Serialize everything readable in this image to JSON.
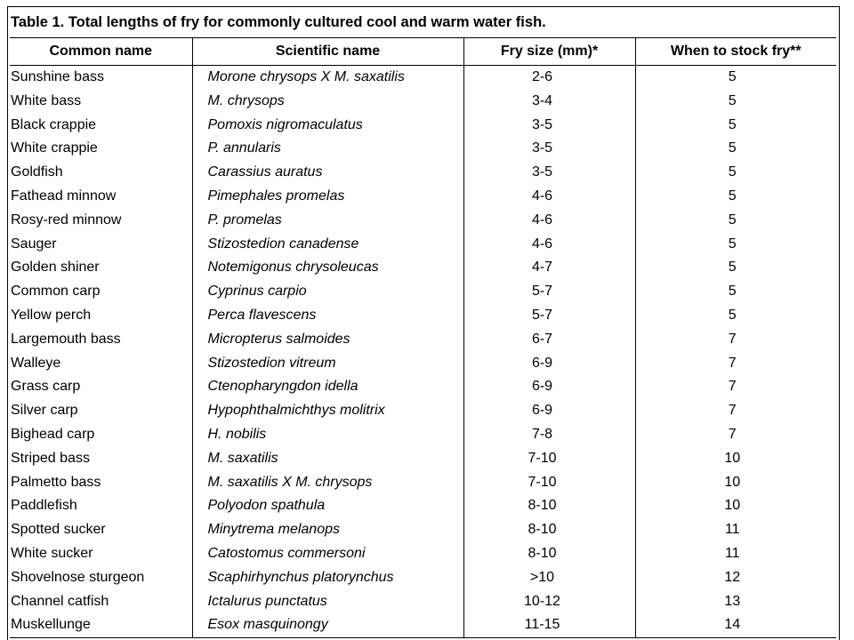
{
  "caption": "Table 1. Total lengths of fry for commonly cultured cool and warm water fish.",
  "columns": [
    "Common name",
    "Scientific name",
    "Fry size (mm)*",
    "When to  stock fry**"
  ],
  "rows": [
    [
      "Sunshine bass",
      "Morone chrysops X M. saxatilis",
      "2-6",
      "5"
    ],
    [
      "White bass",
      "M. chrysops",
      "3-4",
      "5"
    ],
    [
      "Black crappie",
      "Pomoxis nigromaculatus",
      "3-5",
      "5"
    ],
    [
      "White crappie",
      "P. annularis",
      "3-5",
      "5"
    ],
    [
      "Goldfish",
      "Carassius auratus",
      "3-5",
      "5"
    ],
    [
      "Fathead minnow",
      "Pimephales promelas",
      "4-6",
      "5"
    ],
    [
      "Rosy-red minnow",
      "P. promelas",
      "4-6",
      "5"
    ],
    [
      "Sauger",
      "Stizostedion canadense",
      "4-6",
      "5"
    ],
    [
      "Golden shiner",
      "Notemigonus chrysoleucas",
      "4-7",
      "5"
    ],
    [
      "Common carp",
      "Cyprinus carpio",
      "5-7",
      "5"
    ],
    [
      "Yellow perch",
      "Perca flavescens",
      "5-7",
      "5"
    ],
    [
      "Largemouth bass",
      "Micropterus salmoides",
      "6-7",
      "7"
    ],
    [
      "Walleye",
      "Stizostedion vitreum",
      "6-9",
      "7"
    ],
    [
      "Grass carp",
      "Ctenopharyngdon idella",
      "6-9",
      "7"
    ],
    [
      "Silver carp",
      "Hypophthalmichthys molitrix",
      "6-9",
      "7"
    ],
    [
      "Bighead carp",
      "H. nobilis",
      "7-8",
      "7"
    ],
    [
      "Striped bass",
      "M. saxatilis",
      "7-10",
      "10"
    ],
    [
      "Palmetto bass",
      "M. saxatilis X M. chrysops",
      "7-10",
      "10"
    ],
    [
      "Paddlefish",
      "Polyodon spathula",
      "8-10",
      "10"
    ],
    [
      "Spotted sucker",
      "Minytrema melanops",
      "8-10",
      "11"
    ],
    [
      "White sucker",
      "Catostomus commersoni",
      "8-10",
      "11"
    ],
    [
      "Shovelnose sturgeon",
      "Scaphirhynchus platorynchus",
      ">10",
      "12"
    ],
    [
      "Channel catfish",
      "Ictalurus  punctatus",
      "10-12",
      "13"
    ],
    [
      "Muskellunge",
      "Esox masquinongy",
      "11-15",
      "14"
    ]
  ]
}
